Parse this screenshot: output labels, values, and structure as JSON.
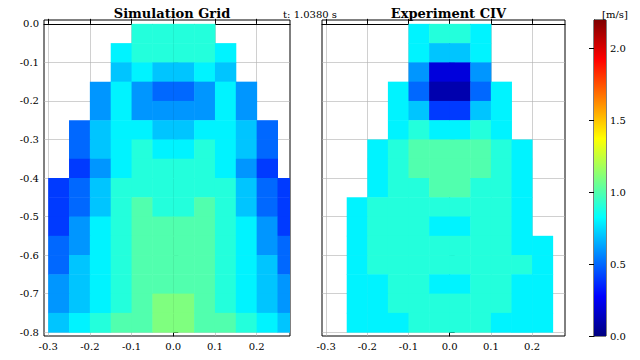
{
  "chart_data": [
    {
      "type": "heatmap",
      "title": "Simulation Grid",
      "annotations": [
        "t: 1.0380 s"
      ],
      "xlim": [
        -0.31,
        0.28
      ],
      "xticks": [
        -0.3,
        -0.2,
        -0.1,
        {
          "value": 0,
          "label": "0.0"
        },
        0.1,
        0.2
      ],
      "ylim": [
        -0.81,
        0.01
      ],
      "yticks": [
        {
          "value": 0,
          "label": "0.0"
        },
        -0.1,
        -0.2,
        -0.3,
        -0.4,
        -0.5,
        -0.6,
        -0.7,
        -0.8
      ],
      "grid": true,
      "x_bins": [
        -0.3,
        -0.25,
        -0.2,
        -0.15,
        -0.1,
        -0.05,
        0,
        0.05,
        0.1,
        0.15,
        0.2,
        0.25,
        0.3
      ],
      "y_bins": [
        0,
        -0.05,
        -0.1,
        -0.15,
        -0.2,
        -0.25,
        -0.3,
        -0.35,
        -0.4,
        -0.45,
        -0.5,
        -0.55,
        -0.6,
        -0.65,
        -0.7,
        -0.75,
        -0.8
      ],
      "values": [
        [
          null,
          null,
          null,
          null,
          0.9,
          0.9,
          0.9,
          0.9,
          null,
          null,
          null,
          null
        ],
        [
          null,
          null,
          null,
          0.8,
          0.9,
          0.9,
          0.9,
          0.9,
          0.8,
          null,
          null,
          null
        ],
        [
          null,
          null,
          null,
          0.7,
          0.8,
          0.7,
          0.7,
          0.8,
          0.7,
          null,
          null,
          null
        ],
        [
          null,
          null,
          0.6,
          0.8,
          0.6,
          0.5,
          0.5,
          0.6,
          0.8,
          0.6,
          null,
          null
        ],
        [
          null,
          null,
          0.6,
          0.8,
          0.6,
          0.6,
          0.6,
          0.6,
          0.8,
          0.6,
          null,
          null
        ],
        [
          null,
          0.5,
          0.7,
          0.8,
          0.8,
          0.7,
          0.7,
          0.8,
          0.8,
          0.7,
          0.5,
          null
        ],
        [
          null,
          0.5,
          0.7,
          0.8,
          0.9,
          0.8,
          0.8,
          0.9,
          0.8,
          0.7,
          0.5,
          null
        ],
        [
          null,
          0.4,
          0.6,
          0.8,
          0.9,
          0.9,
          0.9,
          0.9,
          0.8,
          0.6,
          0.4,
          null
        ],
        [
          0.4,
          0.5,
          0.7,
          0.9,
          0.9,
          0.9,
          0.9,
          0.9,
          0.9,
          0.7,
          0.5,
          0.4
        ],
        [
          0.4,
          0.5,
          0.7,
          0.9,
          1.0,
          0.9,
          0.9,
          1.0,
          0.9,
          0.7,
          0.5,
          0.4
        ],
        [
          0.4,
          0.6,
          0.8,
          0.9,
          1.0,
          1.0,
          1.0,
          1.0,
          0.9,
          0.8,
          0.6,
          0.4
        ],
        [
          0.5,
          0.6,
          0.8,
          0.9,
          1.0,
          1.0,
          1.0,
          1.0,
          0.9,
          0.8,
          0.6,
          0.5
        ],
        [
          0.5,
          0.7,
          0.8,
          0.9,
          1.0,
          1.0,
          1.0,
          1.0,
          0.9,
          0.8,
          0.7,
          0.5
        ],
        [
          0.6,
          0.7,
          0.8,
          0.9,
          1.0,
          1.0,
          1.0,
          1.0,
          0.9,
          0.8,
          0.7,
          0.6
        ],
        [
          0.6,
          0.7,
          0.8,
          0.9,
          1.0,
          1.1,
          1.1,
          1.0,
          0.9,
          0.8,
          0.7,
          0.6
        ],
        [
          0.7,
          0.8,
          0.9,
          1.0,
          1.0,
          1.1,
          1.1,
          1.0,
          1.0,
          0.9,
          0.8,
          0.7
        ]
      ],
      "colorbar": {
        "label": "[m/s]",
        "lim": [
          0,
          2.2
        ],
        "ticks": [
          {
            "value": 0,
            "label": "0.0"
          },
          0.5,
          {
            "value": 1,
            "label": "1.0"
          },
          1.5,
          {
            "value": 2,
            "label": "2.0"
          }
        ]
      }
    },
    {
      "type": "heatmap",
      "title": "Experiment CIV",
      "tick_labels": "x",
      "xlim": [
        -0.31,
        0.28
      ],
      "xticks": [
        -0.3,
        -0.2,
        -0.1,
        {
          "value": 0,
          "label": "0.0"
        },
        0.1,
        0.2
      ],
      "ylim": [
        -0.81,
        0.01
      ],
      "yticks": [
        {
          "value": 0,
          "label": "0.0"
        },
        -0.1,
        -0.2,
        -0.3,
        -0.4,
        -0.5,
        -0.6,
        -0.7,
        -0.8
      ],
      "grid": true,
      "x_bins": [
        -0.3,
        -0.25,
        -0.2,
        -0.15,
        -0.1,
        -0.05,
        0,
        0.05,
        0.1,
        0.15,
        0.2,
        0.25,
        0.3
      ],
      "y_bins": [
        0,
        -0.05,
        -0.1,
        -0.15,
        -0.2,
        -0.25,
        -0.3,
        -0.35,
        -0.4,
        -0.45,
        -0.5,
        -0.55,
        -0.6,
        -0.65,
        -0.7,
        -0.75,
        -0.8
      ],
      "values": [
        [
          null,
          null,
          null,
          null,
          0.8,
          0.9,
          0.9,
          0.8,
          null,
          null,
          null,
          null
        ],
        [
          null,
          null,
          null,
          null,
          0.8,
          0.7,
          0.7,
          0.8,
          null,
          null,
          null,
          null
        ],
        [
          null,
          null,
          null,
          null,
          0.6,
          0.2,
          0.2,
          0.6,
          null,
          null,
          null,
          null
        ],
        [
          null,
          null,
          null,
          0.8,
          0.5,
          0.1,
          0.1,
          0.5,
          0.8,
          null,
          null,
          null
        ],
        [
          null,
          null,
          null,
          0.8,
          0.7,
          0.4,
          0.4,
          0.7,
          0.8,
          null,
          null,
          null
        ],
        [
          null,
          null,
          null,
          0.8,
          0.9,
          0.8,
          0.8,
          0.9,
          0.8,
          null,
          null,
          null
        ],
        [
          null,
          null,
          0.8,
          0.9,
          1.0,
          1.0,
          1.0,
          1.0,
          0.9,
          0.8,
          null,
          null
        ],
        [
          null,
          null,
          0.8,
          0.9,
          1.0,
          1.0,
          1.0,
          1.0,
          0.9,
          0.8,
          null,
          null
        ],
        [
          null,
          null,
          0.8,
          0.9,
          0.9,
          1.0,
          1.0,
          0.9,
          0.9,
          0.8,
          null,
          null
        ],
        [
          null,
          0.8,
          0.9,
          0.9,
          0.9,
          0.9,
          0.9,
          0.9,
          0.9,
          0.8,
          null,
          null
        ],
        [
          null,
          0.8,
          0.9,
          0.9,
          0.9,
          0.8,
          0.8,
          0.9,
          0.9,
          0.8,
          null,
          null
        ],
        [
          null,
          0.8,
          0.9,
          0.9,
          0.9,
          0.9,
          0.9,
          0.9,
          0.9,
          0.8,
          0.8,
          null
        ],
        [
          null,
          0.8,
          0.9,
          0.9,
          0.9,
          0.9,
          0.9,
          0.9,
          0.9,
          0.9,
          0.8,
          null
        ],
        [
          null,
          0.8,
          0.8,
          0.9,
          0.9,
          0.8,
          0.8,
          0.9,
          0.9,
          0.8,
          0.8,
          null
        ],
        [
          null,
          0.8,
          0.8,
          0.9,
          0.9,
          0.9,
          0.9,
          0.9,
          0.9,
          0.8,
          0.8,
          null
        ],
        [
          null,
          0.8,
          0.8,
          0.8,
          0.9,
          0.9,
          0.9,
          0.9,
          0.8,
          0.8,
          0.8,
          null
        ]
      ]
    }
  ]
}
